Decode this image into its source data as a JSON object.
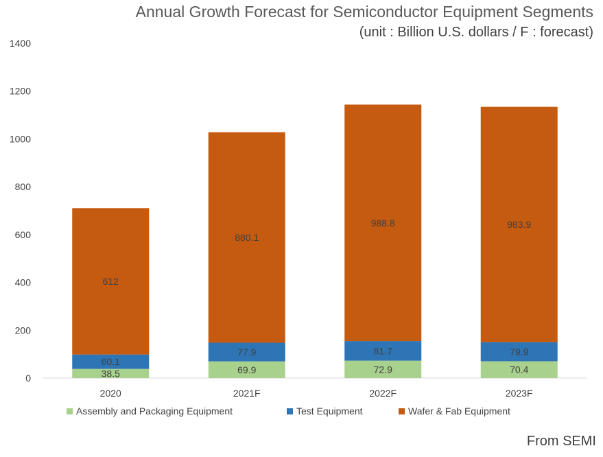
{
  "chart_data": {
    "type": "bar",
    "stacked": true,
    "title": "Annual Growth Forecast for Semiconductor Equipment Segments",
    "subtitle": "(unit : Billion U.S. dollars / F : forecast)",
    "categories": [
      "2020",
      "2021F",
      "2022F",
      "2023F"
    ],
    "series": [
      {
        "name": "Assembly and Packaging Equipment",
        "color": "#a9d18e",
        "values": [
          38.5,
          69.9,
          72.9,
          70.4
        ],
        "labels": [
          "38.5",
          "69.9",
          "72.9",
          "70.4"
        ]
      },
      {
        "name": "Test Equipment",
        "color": "#2e75b6",
        "values": [
          60.1,
          77.9,
          81.7,
          79.9
        ],
        "labels": [
          "60.1",
          "77.9",
          "81.7",
          "79.9"
        ]
      },
      {
        "name": "Wafer & Fab Equipment",
        "color": "#c55a11",
        "values": [
          612,
          880.1,
          988.8,
          983.9
        ],
        "labels": [
          "612",
          "880.1",
          "988.8",
          "983.9"
        ]
      }
    ],
    "yticks": [
      "0",
      "200",
      "400",
      "600",
      "800",
      "1000",
      "1200",
      "1400"
    ],
    "ylim": [
      0,
      1400
    ],
    "grid": false,
    "legend": "bottom"
  },
  "source": "From SEMI"
}
